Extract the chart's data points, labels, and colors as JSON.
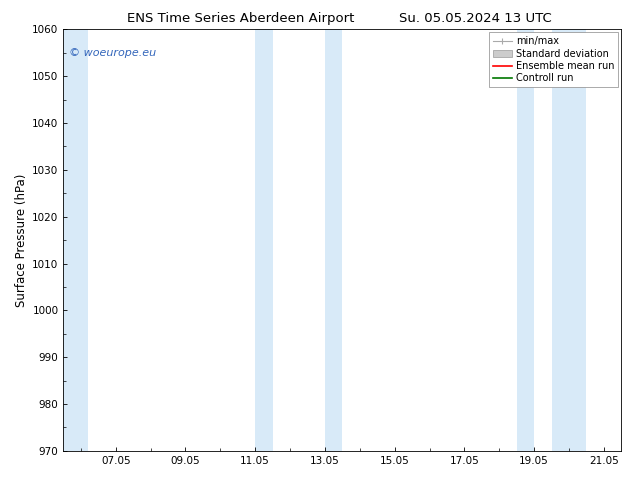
{
  "title_left": "ENS Time Series Aberdeen Airport",
  "title_right": "Su. 05.05.2024 13 UTC",
  "ylabel": "Surface Pressure (hPa)",
  "ylim": [
    970,
    1060
  ],
  "yticks": [
    970,
    980,
    990,
    1000,
    1010,
    1020,
    1030,
    1040,
    1050,
    1060
  ],
  "xlim_start": 5.5,
  "xlim_end": 21.5,
  "xtick_labels": [
    "07.05",
    "09.05",
    "11.05",
    "13.05",
    "15.05",
    "17.05",
    "19.05",
    "21.05"
  ],
  "xtick_positions": [
    7,
    9,
    11,
    13,
    15,
    17,
    19,
    21
  ],
  "background_color": "#ffffff",
  "plot_bg_color": "#ffffff",
  "shaded_regions": [
    {
      "x_start": 5.5,
      "x_end": 6.2,
      "color": "#d8eaf8"
    },
    {
      "x_start": 11.0,
      "x_end": 11.5,
      "color": "#d8eaf8"
    },
    {
      "x_start": 13.0,
      "x_end": 13.5,
      "color": "#d8eaf8"
    },
    {
      "x_start": 18.5,
      "x_end": 19.0,
      "color": "#d8eaf8"
    },
    {
      "x_start": 19.5,
      "x_end": 20.5,
      "color": "#d8eaf8"
    }
  ],
  "legend_items": [
    {
      "label": "min/max",
      "color": "#aaaaaa",
      "type": "errorbar"
    },
    {
      "label": "Standard deviation",
      "color": "#cccccc",
      "type": "band"
    },
    {
      "label": "Ensemble mean run",
      "color": "#ff0000",
      "type": "line"
    },
    {
      "label": "Controll run",
      "color": "#007700",
      "type": "line"
    }
  ],
  "watermark_text": "© woeurope.eu",
  "watermark_color": "#3366bb",
  "title_fontsize": 9.5,
  "ylabel_fontsize": 8.5,
  "tick_fontsize": 7.5,
  "legend_fontsize": 7,
  "watermark_fontsize": 8
}
